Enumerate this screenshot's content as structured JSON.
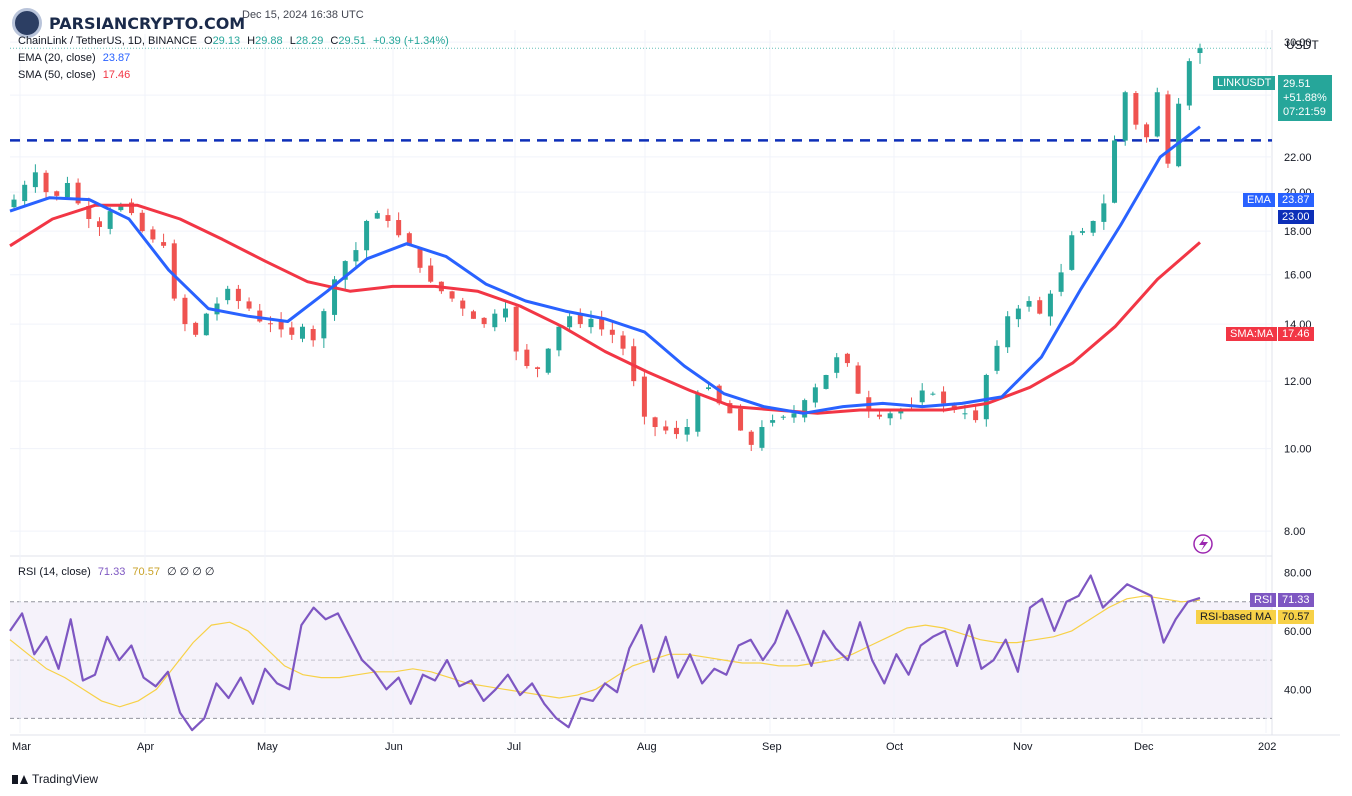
{
  "watermark": "PARSIANCRYPTO.COM",
  "header": {
    "date": "Dec 15, 2024 16:38 UTC",
    "symbol_line": "ChainLink / TetherUS, 1D, BINANCE",
    "open_label": "O",
    "open": "29.13",
    "high_label": "H",
    "high": "29.88",
    "low_label": "L",
    "low": "28.29",
    "close_label": "C",
    "close": "29.51",
    "change": "+0.39 (+1.34%)",
    "ema_label": "EMA (20, close)",
    "ema_value": "23.87",
    "sma_label": "SMA (50, close)",
    "sma_value": "17.46"
  },
  "rsi_header": {
    "label": "RSI (14, close)",
    "rsi": "71.33",
    "ma": "70.57",
    "extra": "∅ ∅ ∅ ∅"
  },
  "price_axis": {
    "unit": "USDT",
    "ticks": [
      "30.00",
      "26.00",
      "22.00",
      "20.00",
      "18.00",
      "16.00",
      "14.00",
      "12.00",
      "10.00",
      "8.00"
    ]
  },
  "rsi_axis": {
    "ticks": [
      "80.00",
      "60.00",
      "40.00"
    ]
  },
  "x_axis": {
    "labels": [
      "Mar",
      "Apr",
      "May",
      "Jun",
      "Jul",
      "Aug",
      "Sep",
      "Oct",
      "Nov",
      "Dec",
      "202"
    ]
  },
  "price_tags": {
    "symbol": "LINKUSDT",
    "price": "29.51",
    "change_pct": "+51.88%",
    "countdown": "07:21:59",
    "ema_tag": "EMA",
    "ema": "23.87",
    "level": "23.00",
    "sma_tag": "SMA:MA",
    "sma": "17.46"
  },
  "rsi_tags": {
    "rsi_tag": "RSI",
    "rsi": "71.33",
    "ma_tag": "RSI-based MA",
    "ma": "70.57"
  },
  "footer": {
    "brand": "TradingView"
  },
  "colors": {
    "up": "#26a69a",
    "down": "#ef5350",
    "ema": "#2962ff",
    "sma": "#f23645",
    "rsi": "#7e57c2",
    "rsi_ma": "#f7d147",
    "level": "#0d2fb8"
  },
  "chart_data": {
    "type": "candlestick",
    "symbol": "LINKUSDT",
    "timeframe": "1D",
    "price_range": [
      7.5,
      31
    ],
    "horizontal_level": 23.0,
    "rsi_range": [
      25,
      85
    ],
    "rsi_bands": [
      30,
      50,
      70
    ],
    "last": {
      "open": 29.13,
      "high": 29.88,
      "low": 28.29,
      "close": 29.51,
      "ema20": 23.87,
      "sma50": 17.46,
      "rsi": 71.33,
      "rsi_ma": 70.57
    },
    "close_path": [
      [
        19.6,
        20.4,
        21.1,
        20.0,
        19.8,
        20.5,
        19.4,
        18.6,
        18.2,
        19.0,
        19.3,
        18.9,
        18.0,
        17.6
      ],
      [
        17.3,
        15.0,
        14.0,
        13.6,
        14.4,
        14.8,
        15.4,
        14.9,
        14.6,
        14.1,
        14.0,
        13.8,
        13.6,
        13.9
      ],
      [
        13.4,
        14.5,
        15.8,
        16.6,
        17.1,
        18.5,
        18.9,
        18.5,
        17.8,
        17.3,
        16.3,
        15.7,
        15.3,
        15.0
      ],
      [
        14.6,
        14.2,
        14.0,
        14.4,
        14.6,
        13.0,
        12.5,
        12.4,
        13.1,
        13.9,
        14.3,
        14.0,
        14.2,
        13.8
      ],
      [
        13.6,
        13.1,
        12.0,
        10.9,
        10.6,
        10.5,
        10.4,
        10.6,
        11.6,
        11.8,
        11.3,
        11.0,
        10.5,
        10.1
      ],
      [
        10.6,
        10.8,
        10.9,
        11.0,
        11.4,
        11.8,
        12.2,
        12.8,
        12.6,
        11.6,
        11.1,
        10.9,
        11.0,
        11.1
      ],
      [
        11.2,
        11.7,
        11.6,
        11.3,
        11.1,
        11.0,
        10.8,
        12.2,
        13.2,
        14.3,
        14.6,
        14.9,
        14.4,
        15.2
      ],
      [
        16.1,
        17.8,
        18.0,
        18.5,
        19.4,
        23.0,
        26.2,
        24.0,
        23.2,
        26.2,
        21.6,
        25.4,
        28.5,
        29.51
      ]
    ],
    "ema20_path": [
      19.0,
      19.7,
      19.6,
      18.6,
      16.2,
      14.6,
      14.3,
      14.1,
      15.3,
      16.7,
      17.4,
      16.8,
      15.6,
      14.9,
      14.5,
      14.2,
      13.7,
      12.5,
      11.6,
      11.2,
      11.0,
      11.2,
      11.3,
      11.2,
      11.3,
      11.5,
      12.8,
      15.4,
      18.3,
      22.0,
      23.87
    ],
    "sma50_path": [
      17.3,
      18.6,
      19.3,
      19.3,
      18.6,
      17.6,
      16.6,
      15.7,
      15.3,
      15.5,
      15.5,
      15.3,
      14.7,
      13.9,
      13.0,
      12.3,
      11.7,
      11.2,
      11.1,
      11.0,
      11.1,
      11.1,
      11.1,
      11.3,
      11.8,
      12.6,
      13.9,
      15.8,
      17.46
    ],
    "rsi_path": [
      60,
      66,
      52,
      58,
      47,
      64,
      43,
      45,
      58,
      50,
      55,
      44,
      41,
      46,
      32,
      26,
      30,
      42,
      37,
      44,
      35,
      47,
      42,
      40,
      62,
      68,
      64,
      66,
      58,
      50,
      46,
      40,
      44,
      35,
      45,
      43,
      50,
      41,
      43,
      36,
      40,
      45,
      38,
      42,
      35,
      30,
      27,
      37,
      36,
      42,
      39,
      54,
      62,
      46,
      58,
      44,
      52,
      42,
      47,
      45,
      55,
      57,
      50,
      56,
      67,
      58,
      48,
      60,
      54,
      50,
      63,
      50,
      42,
      52,
      45,
      55,
      58,
      60,
      48,
      62,
      47,
      50,
      57,
      46,
      68,
      71,
      60,
      70,
      72,
      79,
      68,
      72,
      76,
      74,
      72,
      56,
      64,
      70,
      71.33
    ],
    "rsi_ma_path": [
      57,
      52,
      47,
      44,
      40,
      36,
      34,
      36,
      40,
      48,
      56,
      62,
      63,
      60,
      54,
      48,
      45,
      44,
      44,
      45,
      46,
      46,
      47,
      46,
      44,
      42,
      41,
      40,
      39,
      38,
      37,
      38,
      40,
      44,
      48,
      50,
      52,
      52,
      51,
      50,
      49,
      49,
      48,
      48,
      49,
      50,
      52,
      55,
      58,
      61,
      62,
      61,
      59,
      57,
      56,
      56,
      57,
      58,
      60,
      64,
      68,
      71,
      72,
      71,
      70,
      70.57
    ]
  }
}
